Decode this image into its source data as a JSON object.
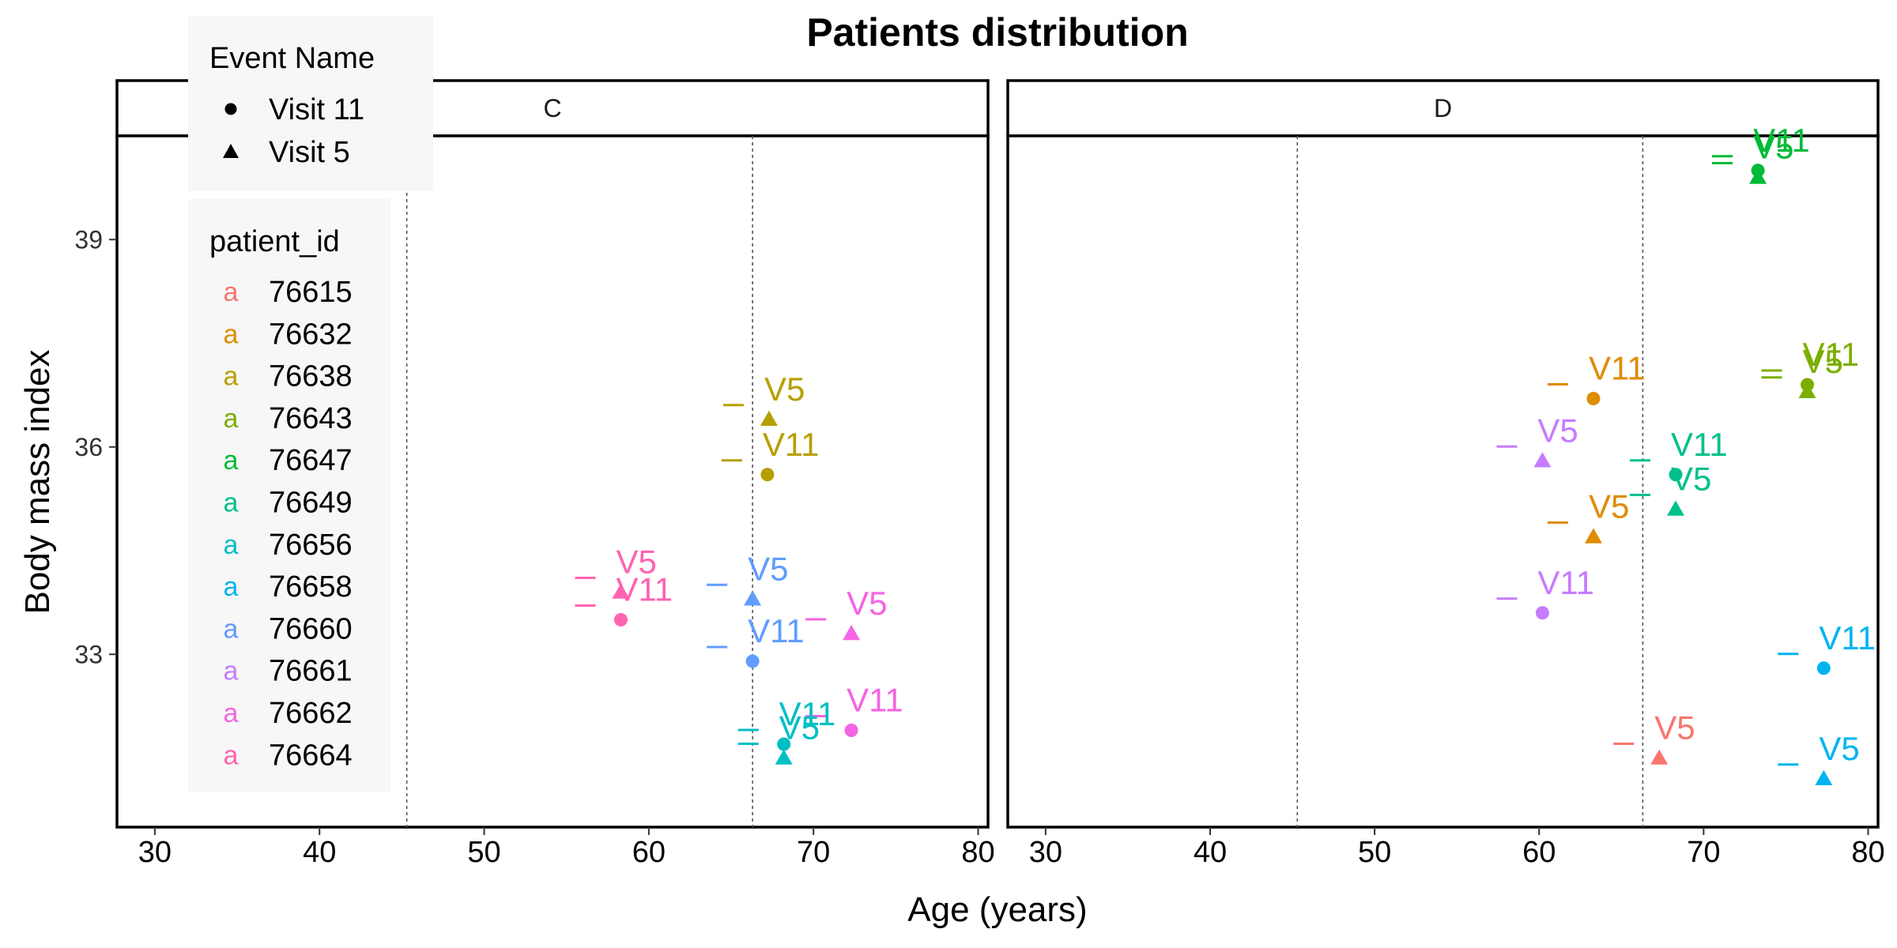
{
  "chart_data": {
    "type": "scatter",
    "title": "Patients distribution",
    "xlabel": "Age (years)",
    "ylabel": "Body mass index",
    "xlim": [
      27.7,
      80.6
    ],
    "ylim": [
      30.5,
      40.5
    ],
    "xticks": [
      30,
      40,
      50,
      60,
      70,
      80
    ],
    "yticks": [
      33,
      36,
      39
    ],
    "grid": false,
    "panels": [
      {
        "label": "C",
        "vlines": [
          45.3,
          66.3
        ],
        "points": [
          {
            "patient": "76638",
            "event": "Visit 5",
            "x": 67.3,
            "y": 36.4,
            "label": "V5"
          },
          {
            "patient": "76638",
            "event": "Visit 11",
            "x": 67.2,
            "y": 35.6,
            "label": "V11"
          },
          {
            "patient": "76664",
            "event": "Visit 5",
            "x": 58.3,
            "y": 33.9,
            "label": "V5"
          },
          {
            "patient": "76664",
            "event": "Visit 11",
            "x": 58.3,
            "y": 33.5,
            "label": "V11"
          },
          {
            "patient": "76660",
            "event": "Visit 5",
            "x": 66.3,
            "y": 33.8,
            "label": "V5"
          },
          {
            "patient": "76660",
            "event": "Visit 11",
            "x": 66.3,
            "y": 32.9,
            "label": "V11"
          },
          {
            "patient": "76662",
            "event": "Visit 5",
            "x": 72.3,
            "y": 33.3,
            "label": "V5"
          },
          {
            "patient": "76662",
            "event": "Visit 11",
            "x": 72.3,
            "y": 31.9,
            "label": "V11"
          },
          {
            "patient": "76656",
            "event": "Visit 11",
            "x": 68.2,
            "y": 31.7,
            "label": "V11"
          },
          {
            "patient": "76656",
            "event": "Visit 5",
            "x": 68.2,
            "y": 31.5,
            "label": "V5"
          }
        ]
      },
      {
        "label": "D",
        "vlines": [
          45.3,
          66.3
        ],
        "points": [
          {
            "patient": "76647",
            "event": "Visit 11",
            "x": 73.3,
            "y": 40.0,
            "label": "V11"
          },
          {
            "patient": "76647",
            "event": "Visit 5",
            "x": 73.3,
            "y": 39.9,
            "label": "V5"
          },
          {
            "patient": "76643",
            "event": "Visit 11",
            "x": 76.3,
            "y": 36.9,
            "label": "V11"
          },
          {
            "patient": "76643",
            "event": "Visit 5",
            "x": 76.3,
            "y": 36.8,
            "label": "V5"
          },
          {
            "patient": "76632",
            "event": "Visit 11",
            "x": 63.3,
            "y": 36.7,
            "label": "V11"
          },
          {
            "patient": "76632",
            "event": "Visit 5",
            "x": 63.3,
            "y": 34.7,
            "label": "V5"
          },
          {
            "patient": "76661",
            "event": "Visit 5",
            "x": 60.2,
            "y": 35.8,
            "label": "V5"
          },
          {
            "patient": "76661",
            "event": "Visit 11",
            "x": 60.2,
            "y": 33.6,
            "label": "V11"
          },
          {
            "patient": "76649",
            "event": "Visit 11",
            "x": 68.3,
            "y": 35.6,
            "label": "V11"
          },
          {
            "patient": "76649",
            "event": "Visit 5",
            "x": 68.3,
            "y": 35.1,
            "label": "V5"
          },
          {
            "patient": "76658",
            "event": "Visit 11",
            "x": 77.3,
            "y": 32.8,
            "label": "V11"
          },
          {
            "patient": "76658",
            "event": "Visit 5",
            "x": 77.3,
            "y": 31.2,
            "label": "V5"
          },
          {
            "patient": "76615",
            "event": "Visit 5",
            "x": 67.3,
            "y": 31.5,
            "label": "V5"
          }
        ]
      }
    ],
    "legend": {
      "placement": "top-left",
      "shape_title": "Event Name",
      "shapes": [
        {
          "event": "Visit 11",
          "shape": "circle"
        },
        {
          "event": "Visit 5",
          "shape": "triangle"
        }
      ],
      "color_title": "patient_id",
      "glyph": "a",
      "patients": [
        {
          "id": "76615",
          "color": "#F8766D"
        },
        {
          "id": "76632",
          "color": "#DE8C00"
        },
        {
          "id": "76638",
          "color": "#B79F00"
        },
        {
          "id": "76643",
          "color": "#7CAE00"
        },
        {
          "id": "76647",
          "color": "#00BA38"
        },
        {
          "id": "76649",
          "color": "#00C08B"
        },
        {
          "id": "76656",
          "color": "#00BFC4"
        },
        {
          "id": "76658",
          "color": "#00B4F0"
        },
        {
          "id": "76660",
          "color": "#619CFF"
        },
        {
          "id": "76661",
          "color": "#C77CFF"
        },
        {
          "id": "76662",
          "color": "#F564E3"
        },
        {
          "id": "76664",
          "color": "#FF64B0"
        }
      ]
    }
  }
}
